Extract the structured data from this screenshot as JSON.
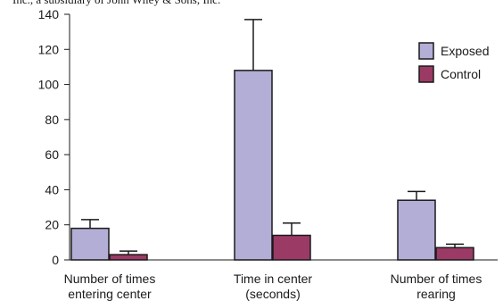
{
  "caption": "Inc., a subsidiary of John Wiley & Sons, Inc.",
  "chart_data": {
    "type": "bar",
    "categories": [
      [
        "Number of times",
        "entering center"
      ],
      [
        "Time in center",
        "(seconds)"
      ],
      [
        "Number of times",
        "rearing"
      ]
    ],
    "series": [
      {
        "name": "Exposed",
        "color": "#b3aed6",
        "values": [
          18,
          108,
          34
        ],
        "error": [
          5,
          29,
          5
        ]
      },
      {
        "name": "Control",
        "color": "#9c3a66",
        "values": [
          3,
          14,
          7
        ],
        "error": [
          2,
          7,
          2
        ]
      }
    ],
    "ylim": [
      0,
      140
    ],
    "yticks": [
      0,
      20,
      40,
      60,
      80,
      100,
      120,
      140
    ],
    "legend": "top-right",
    "grid": false,
    "xlabel": "",
    "ylabel": ""
  }
}
